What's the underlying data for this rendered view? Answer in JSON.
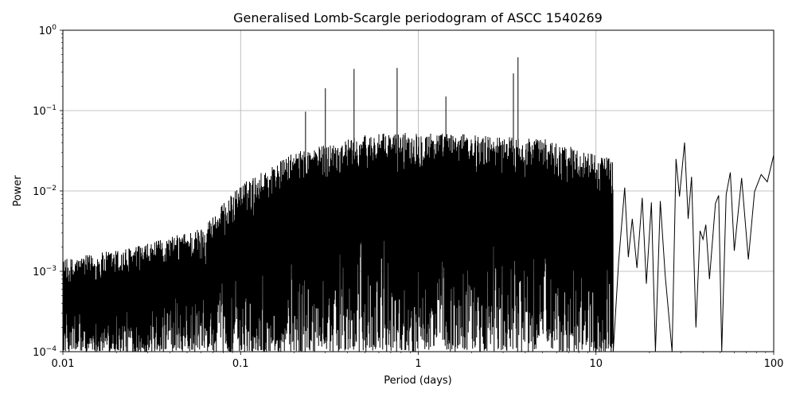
{
  "chart_data": {
    "type": "line",
    "title": "Generalised Lomb-Scargle periodogram of ASCC 1540269",
    "xlabel": "Period (days)",
    "ylabel": "Power",
    "xscale": "log",
    "yscale": "log",
    "xlim": [
      0.01,
      100
    ],
    "ylim": [
      0.0001,
      1
    ],
    "grid": true,
    "x_ticks": [
      {
        "value": 0.01,
        "label": "0.01"
      },
      {
        "value": 0.1,
        "label": "0.1"
      },
      {
        "value": 1,
        "label": "1"
      },
      {
        "value": 10,
        "label": "10"
      },
      {
        "value": 100,
        "label": "100"
      }
    ],
    "y_ticks": [
      {
        "value": 0.0001,
        "base": "10",
        "exp": "−4"
      },
      {
        "value": 0.001,
        "base": "10",
        "exp": "−3"
      },
      {
        "value": 0.01,
        "base": "10",
        "exp": "−2"
      },
      {
        "value": 0.1,
        "base": "10",
        "exp": "−1"
      },
      {
        "value": 1,
        "base": "10",
        "exp": "0"
      }
    ],
    "series_color": "#000000",
    "prominent_peaks": [
      {
        "period": 0.232,
        "power": 0.097
      },
      {
        "period": 0.3,
        "power": 0.19
      },
      {
        "period": 0.435,
        "power": 0.33
      },
      {
        "period": 0.76,
        "power": 0.34
      },
      {
        "period": 1.43,
        "power": 0.15
      },
      {
        "period": 3.43,
        "power": 0.29
      },
      {
        "period": 3.64,
        "power": 0.46
      },
      {
        "period": 6.6,
        "power": 0.032
      },
      {
        "period": 10.8,
        "power": 0.024
      },
      {
        "period": 14.5,
        "power": 0.011
      },
      {
        "period": 18.2,
        "power": 0.0082
      },
      {
        "period": 28.2,
        "power": 0.025
      },
      {
        "period": 31.5,
        "power": 0.04
      },
      {
        "period": 34.5,
        "power": 0.015
      },
      {
        "period": 49.0,
        "power": 0.0088
      },
      {
        "period": 57.0,
        "power": 0.017
      },
      {
        "period": 66.0,
        "power": 0.0145
      },
      {
        "period": 85.0,
        "power": 0.016
      },
      {
        "period": 100.0,
        "power": 0.028
      }
    ],
    "long_period_curve": [
      {
        "period": 12.5,
        "power": 0.0001
      },
      {
        "period": 13.4,
        "power": 0.0013
      },
      {
        "period": 14.5,
        "power": 0.011
      },
      {
        "period": 15.2,
        "power": 0.0015
      },
      {
        "period": 16.0,
        "power": 0.0045
      },
      {
        "period": 17.0,
        "power": 0.0011
      },
      {
        "period": 18.2,
        "power": 0.0082
      },
      {
        "period": 19.2,
        "power": 0.0007
      },
      {
        "period": 20.5,
        "power": 0.0072
      },
      {
        "period": 21.6,
        "power": 0.0001
      },
      {
        "period": 23.0,
        "power": 0.0075
      },
      {
        "period": 24.5,
        "power": 0.0009
      },
      {
        "period": 26.8,
        "power": 0.0001
      },
      {
        "period": 28.2,
        "power": 0.025
      },
      {
        "period": 29.5,
        "power": 0.0085
      },
      {
        "period": 31.5,
        "power": 0.04
      },
      {
        "period": 33.0,
        "power": 0.0045
      },
      {
        "period": 34.5,
        "power": 0.015
      },
      {
        "period": 36.5,
        "power": 0.0002
      },
      {
        "period": 38.5,
        "power": 0.0032
      },
      {
        "period": 40.0,
        "power": 0.0025
      },
      {
        "period": 41.5,
        "power": 0.0038
      },
      {
        "period": 43.5,
        "power": 0.0008
      },
      {
        "period": 47.0,
        "power": 0.007
      },
      {
        "period": 49.0,
        "power": 0.0088
      },
      {
        "period": 51.0,
        "power": 0.0001
      },
      {
        "period": 54.0,
        "power": 0.009
      },
      {
        "period": 57.0,
        "power": 0.017
      },
      {
        "period": 60.0,
        "power": 0.0018
      },
      {
        "period": 66.0,
        "power": 0.0145
      },
      {
        "period": 72.0,
        "power": 0.0014
      },
      {
        "period": 78.0,
        "power": 0.0098
      },
      {
        "period": 85.0,
        "power": 0.016
      },
      {
        "period": 92.0,
        "power": 0.013
      },
      {
        "period": 100.0,
        "power": 0.028
      }
    ],
    "envelope": [
      {
        "period": 0.01,
        "power": 0.0014
      },
      {
        "period": 0.03,
        "power": 0.0022
      },
      {
        "period": 0.06,
        "power": 0.0035
      },
      {
        "period": 0.1,
        "power": 0.012
      },
      {
        "period": 0.2,
        "power": 0.03
      },
      {
        "period": 0.5,
        "power": 0.05
      },
      {
        "period": 1.0,
        "power": 0.055
      },
      {
        "period": 2.0,
        "power": 0.05
      },
      {
        "period": 5.0,
        "power": 0.045
      },
      {
        "period": 12.5,
        "power": 0.025
      }
    ]
  }
}
